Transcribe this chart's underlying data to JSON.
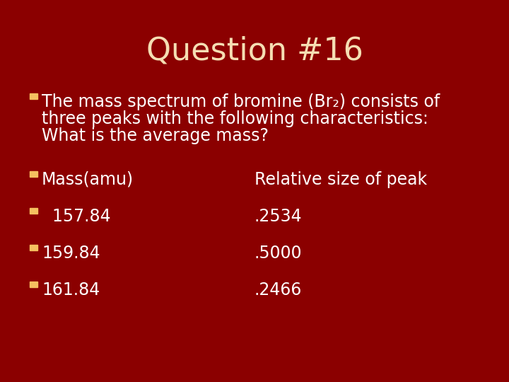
{
  "title": "Question #16",
  "title_color": "#F5DEB3",
  "title_fontsize": 32,
  "background_color": "#8B0000",
  "text_color": "#FFFFFF",
  "bullet_square_color": "#F5C060",
  "line1": "The mass spectrum of bromine (Br₂) consists of",
  "line2": "three peaks with the following characteristics:",
  "line3": "What is the average mass?",
  "col1_header": "Mass(amu)",
  "col2_header": "Relative size of peak",
  "rows": [
    [
      "  157. 84",
      ".2534"
    ],
    [
      "159. 84",
      ".5000"
    ],
    [
      "161. 84",
      ".2466"
    ]
  ],
  "mass_vals": [
    "  157.84",
    "159.84",
    "161.84"
  ],
  "rel_vals": [
    ".2534",
    ".5000",
    ".2466"
  ],
  "fontsize_body": 17,
  "fontsize_table": 17
}
